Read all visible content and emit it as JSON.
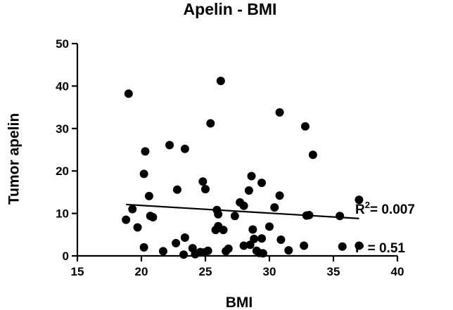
{
  "chart_data": {
    "type": "scatter",
    "title": "Apelin - BMI",
    "xlabel": "BMI",
    "ylabel": "Tumor apelin",
    "xlim": [
      15,
      40
    ],
    "ylim": [
      0,
      50
    ],
    "xticks": [
      15,
      20,
      25,
      30,
      35,
      40
    ],
    "yticks": [
      0,
      10,
      20,
      30,
      40,
      50
    ],
    "grid": false,
    "points": [
      {
        "x": 18.8,
        "y": 8.5
      },
      {
        "x": 19.0,
        "y": 38.2
      },
      {
        "x": 19.3,
        "y": 11.0
      },
      {
        "x": 19.7,
        "y": 6.7
      },
      {
        "x": 20.2,
        "y": 2.0
      },
      {
        "x": 20.2,
        "y": 19.3
      },
      {
        "x": 20.3,
        "y": 24.6
      },
      {
        "x": 20.6,
        "y": 14.1
      },
      {
        "x": 20.7,
        "y": 9.4
      },
      {
        "x": 20.9,
        "y": 9.1
      },
      {
        "x": 21.7,
        "y": 1.1
      },
      {
        "x": 22.2,
        "y": 26.1
      },
      {
        "x": 22.7,
        "y": 3.0
      },
      {
        "x": 22.8,
        "y": 15.6
      },
      {
        "x": 23.3,
        "y": 0.3
      },
      {
        "x": 23.4,
        "y": 4.3
      },
      {
        "x": 23.4,
        "y": 25.2
      },
      {
        "x": 24.0,
        "y": 1.8
      },
      {
        "x": 24.2,
        "y": 0.4
      },
      {
        "x": 24.6,
        "y": 0.9
      },
      {
        "x": 24.8,
        "y": 17.5
      },
      {
        "x": 24.9,
        "y": 0.8
      },
      {
        "x": 25.0,
        "y": 15.7
      },
      {
        "x": 25.2,
        "y": 1.2
      },
      {
        "x": 25.4,
        "y": 31.2
      },
      {
        "x": 25.8,
        "y": 6.1
      },
      {
        "x": 25.9,
        "y": 10.8
      },
      {
        "x": 26.0,
        "y": 9.8
      },
      {
        "x": 26.0,
        "y": 7.0
      },
      {
        "x": 26.2,
        "y": 41.2
      },
      {
        "x": 26.4,
        "y": 6.1
      },
      {
        "x": 26.6,
        "y": 1.1
      },
      {
        "x": 26.8,
        "y": 1.7
      },
      {
        "x": 27.3,
        "y": 9.4
      },
      {
        "x": 27.7,
        "y": 12.6
      },
      {
        "x": 28.0,
        "y": 11.8
      },
      {
        "x": 28.0,
        "y": 2.4
      },
      {
        "x": 28.4,
        "y": 15.4
      },
      {
        "x": 28.5,
        "y": 2.6
      },
      {
        "x": 28.6,
        "y": 18.8
      },
      {
        "x": 28.7,
        "y": 6.2
      },
      {
        "x": 28.8,
        "y": 4.0
      },
      {
        "x": 29.0,
        "y": 1.2
      },
      {
        "x": 29.2,
        "y": 0.7
      },
      {
        "x": 29.4,
        "y": 17.2
      },
      {
        "x": 29.4,
        "y": 4.1
      },
      {
        "x": 29.5,
        "y": 0.6
      },
      {
        "x": 30.0,
        "y": 6.9
      },
      {
        "x": 30.4,
        "y": 11.4
      },
      {
        "x": 30.8,
        "y": 33.8
      },
      {
        "x": 30.8,
        "y": 14.2
      },
      {
        "x": 30.9,
        "y": 3.8
      },
      {
        "x": 31.5,
        "y": 1.3
      },
      {
        "x": 32.7,
        "y": 2.4
      },
      {
        "x": 32.8,
        "y": 30.5
      },
      {
        "x": 32.9,
        "y": 9.5
      },
      {
        "x": 33.1,
        "y": 9.6
      },
      {
        "x": 33.4,
        "y": 23.8
      },
      {
        "x": 35.5,
        "y": 9.4
      },
      {
        "x": 35.7,
        "y": 2.2
      },
      {
        "x": 37.0,
        "y": 13.2
      },
      {
        "x": 37.0,
        "y": 2.4
      }
    ],
    "fit_line": {
      "x": [
        18.8,
        37.0
      ],
      "y": [
        12.1,
        8.8
      ]
    },
    "annotations": {
      "r2_prefix": "R",
      "r2_sup": "2",
      "r2_value": "= 0.007",
      "p_text": "P = 0.51"
    }
  }
}
